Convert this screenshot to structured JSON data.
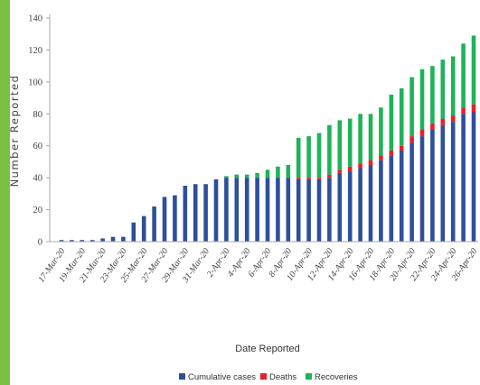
{
  "colors": {
    "page_accent": "#7ac143",
    "cumulative": "#2e4f9b",
    "deaths": "#e8202a",
    "recoveries": "#1fb25a",
    "axis": "#aaaaaa"
  },
  "chart_data": {
    "type": "bar",
    "stacked": true,
    "title": "",
    "xlabel": "Date Reported",
    "ylabel": "Number Reported",
    "ylim": [
      0,
      140
    ],
    "yticks": [
      0,
      20,
      40,
      60,
      80,
      100,
      120,
      140
    ],
    "grid": false,
    "legend_position": "bottom",
    "categories": [
      "17-Mar-20",
      "18-Mar-20",
      "19-Mar-20",
      "20-Mar-20",
      "21-Mar-20",
      "22-Mar-20",
      "23-Mar-20",
      "24-Mar-20",
      "25-Mar-20",
      "26-Mar-20",
      "27-Mar-20",
      "28-Mar-20",
      "29-Mar-20",
      "30-Mar-20",
      "31-Mar-20",
      "1-Apr-20",
      "2-Apr-20",
      "3-Apr-20",
      "4-Apr-20",
      "5-Apr-20",
      "6-Apr-20",
      "7-Apr-20",
      "8-Apr-20",
      "9-Apr-20",
      "10-Apr-20",
      "11-Apr-20",
      "12-Apr-20",
      "13-Apr-20",
      "14-Apr-20",
      "15-Apr-20",
      "16-Apr-20",
      "17-Apr-20",
      "18-Apr-20",
      "19-Apr-20",
      "20-Apr-20",
      "21-Apr-20",
      "22-Apr-20",
      "23-Apr-20",
      "24-Apr-20",
      "25-Apr-20",
      "26-Apr-20"
    ],
    "tick_labels": [
      "17-Mar-20",
      "19-Mar-20",
      "21-Mar-20",
      "23-Mar-20",
      "25-Mar-20",
      "27-Mar-20",
      "29-Mar-20",
      "31-Mar-20",
      "2-Apr-20",
      "4-Apr-20",
      "6-Apr-20",
      "8-Apr-20",
      "10-Apr-20",
      "12-Apr-20",
      "14-Apr-20",
      "16-Apr-20",
      "18-Apr-20",
      "20-Apr-20",
      "22-Apr-20",
      "24-Apr-20",
      "26-Apr-20"
    ],
    "series": [
      {
        "name": "Cumulative cases",
        "values": [
          1,
          1,
          1,
          1,
          2,
          3,
          3,
          12,
          16,
          22,
          28,
          29,
          35,
          36,
          36,
          39,
          40,
          40,
          40,
          40,
          40,
          40,
          40,
          39,
          39,
          39,
          40,
          43,
          44,
          46,
          48,
          51,
          54,
          57,
          62,
          66,
          70,
          73,
          75,
          80,
          81
        ]
      },
      {
        "name": "Deaths",
        "values": [
          0,
          0,
          0,
          0,
          0,
          0,
          0,
          0,
          0,
          0,
          0,
          0,
          0,
          0,
          0,
          0,
          0,
          0,
          0,
          0,
          0,
          0,
          0,
          1,
          1,
          1,
          2,
          2,
          3,
          3,
          3,
          3,
          3,
          3,
          4,
          4,
          4,
          4,
          4,
          4,
          5
        ]
      },
      {
        "name": "Recoveries",
        "values": [
          0,
          0,
          0,
          0,
          0,
          0,
          0,
          0,
          0,
          0,
          0,
          0,
          0,
          0,
          0,
          0,
          1,
          2,
          2,
          3,
          5,
          7,
          8,
          25,
          26,
          28,
          31,
          31,
          30,
          31,
          29,
          30,
          35,
          36,
          37,
          38,
          36,
          37,
          37,
          40,
          43
        ]
      }
    ]
  }
}
